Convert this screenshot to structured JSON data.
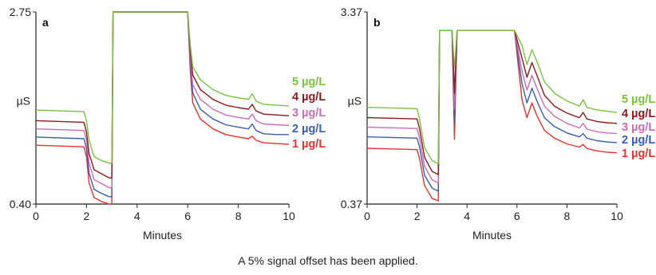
{
  "caption": "A 5% signal offset has been applied.",
  "chart_data": [
    {
      "type": "line",
      "panel_label": "a",
      "xlabel": "Minutes",
      "ylabel": "µS",
      "xlim": [
        0,
        10
      ],
      "x_ticks": [
        "0",
        "2",
        "4",
        "6",
        "8",
        "10"
      ],
      "ylim": [
        0.4,
        2.75
      ],
      "y_ticks": [
        "0.40",
        "2.75"
      ],
      "legend_placement": "right",
      "series": [
        {
          "name": "5 µg/L",
          "color": "#7ac143",
          "x": [
            0,
            1.9,
            2.0,
            2.1,
            2.3,
            2.6,
            2.9,
            3.0,
            3.05,
            6.0,
            6.1,
            6.2,
            6.5,
            7.0,
            7.5,
            8.0,
            8.4,
            8.55,
            8.7,
            9.0,
            9.5,
            10.0
          ],
          "y": [
            1.55,
            1.53,
            1.42,
            1.18,
            0.98,
            0.93,
            0.9,
            0.9,
            2.75,
            2.75,
            2.35,
            2.08,
            1.92,
            1.8,
            1.73,
            1.7,
            1.68,
            1.75,
            1.66,
            1.62,
            1.61,
            1.6
          ]
        },
        {
          "name": "4 µg/L",
          "color": "#8b1a1a",
          "x": [
            0,
            1.9,
            2.0,
            2.1,
            2.3,
            2.6,
            2.9,
            3.0,
            3.05,
            6.0,
            6.1,
            6.2,
            6.5,
            7.0,
            7.5,
            8.0,
            8.4,
            8.55,
            8.7,
            9.0,
            9.5,
            10.0
          ],
          "y": [
            1.42,
            1.4,
            1.28,
            1.02,
            0.82,
            0.77,
            0.72,
            0.72,
            2.75,
            2.75,
            2.28,
            1.98,
            1.8,
            1.68,
            1.61,
            1.58,
            1.56,
            1.62,
            1.54,
            1.5,
            1.49,
            1.48
          ]
        },
        {
          "name": "3 µg/L",
          "color": "#c86eb4",
          "x": [
            0,
            1.9,
            2.0,
            2.1,
            2.3,
            2.6,
            2.9,
            3.0,
            3.05,
            6.0,
            6.1,
            6.2,
            6.5,
            7.0,
            7.5,
            8.0,
            8.4,
            8.55,
            8.7,
            9.0,
            9.5,
            10.0
          ],
          "y": [
            1.32,
            1.3,
            1.18,
            0.9,
            0.7,
            0.65,
            0.6,
            0.6,
            2.75,
            2.75,
            2.2,
            1.86,
            1.68,
            1.56,
            1.49,
            1.46,
            1.44,
            1.5,
            1.42,
            1.38,
            1.37,
            1.36
          ]
        },
        {
          "name": "2 µg/L",
          "color": "#3a5da8",
          "x": [
            0,
            1.9,
            2.0,
            2.1,
            2.3,
            2.6,
            2.9,
            3.0,
            3.05,
            6.0,
            6.1,
            6.2,
            6.5,
            7.0,
            7.5,
            8.0,
            8.4,
            8.55,
            8.7,
            9.0,
            9.5,
            10.0
          ],
          "y": [
            1.22,
            1.2,
            1.08,
            0.78,
            0.58,
            0.53,
            0.49,
            0.49,
            2.75,
            2.75,
            2.12,
            1.76,
            1.56,
            1.44,
            1.37,
            1.34,
            1.32,
            1.38,
            1.3,
            1.26,
            1.25,
            1.25
          ]
        },
        {
          "name": "1 µg/L",
          "color": "#e0332e",
          "x": [
            0,
            1.9,
            2.0,
            2.1,
            2.3,
            2.6,
            2.9,
            3.0,
            3.05,
            6.0,
            6.1,
            6.2,
            6.5,
            7.0,
            7.5,
            8.0,
            8.4,
            8.55,
            8.7,
            9.0,
            9.5,
            10.0
          ],
          "y": [
            1.12,
            1.1,
            0.98,
            0.66,
            0.48,
            0.43,
            0.4,
            0.4,
            2.75,
            2.75,
            2.04,
            1.64,
            1.44,
            1.32,
            1.25,
            1.22,
            1.2,
            1.23,
            1.18,
            1.15,
            1.14,
            1.13
          ]
        }
      ]
    },
    {
      "type": "line",
      "panel_label": "b",
      "xlabel": "Minutes",
      "ylabel": "µS",
      "xlim": [
        0,
        10
      ],
      "x_ticks": [
        "0",
        "2",
        "4",
        "6",
        "8",
        "10"
      ],
      "ylim": [
        0.37,
        3.37
      ],
      "y_ticks": [
        "0.37",
        "3.37"
      ],
      "legend_placement": "right",
      "series": [
        {
          "name": "5 µg/L",
          "color": "#7ac143",
          "x": [
            0,
            2.0,
            2.1,
            2.3,
            2.6,
            2.85,
            2.9,
            3.4,
            3.5,
            3.6,
            3.7,
            5.9,
            6.2,
            6.4,
            6.6,
            6.8,
            7.1,
            7.5,
            8.0,
            8.5,
            8.65,
            8.8,
            9.2,
            9.6,
            10.0
          ],
          "y": [
            1.88,
            1.86,
            1.7,
            1.25,
            1.05,
            1.0,
            3.08,
            3.08,
            2.5,
            3.08,
            3.08,
            3.08,
            2.85,
            2.55,
            2.78,
            2.6,
            2.28,
            2.1,
            1.98,
            1.9,
            2.0,
            1.88,
            1.84,
            1.82,
            1.8
          ]
        },
        {
          "name": "4 µg/L",
          "color": "#8b1a1a",
          "x": [
            0,
            2.0,
            2.1,
            2.3,
            2.6,
            2.85,
            2.9,
            3.4,
            3.5,
            3.6,
            3.7,
            5.9,
            6.2,
            6.4,
            6.6,
            6.8,
            7.1,
            7.5,
            8.0,
            8.5,
            8.65,
            8.8,
            9.2,
            9.6,
            10.0
          ],
          "y": [
            1.72,
            1.7,
            1.55,
            1.1,
            0.88,
            0.83,
            3.08,
            3.08,
            2.1,
            3.08,
            3.08,
            3.08,
            2.65,
            2.35,
            2.58,
            2.38,
            2.07,
            1.9,
            1.79,
            1.72,
            1.8,
            1.7,
            1.66,
            1.64,
            1.63
          ]
        },
        {
          "name": "3 µg/L",
          "color": "#c86eb4",
          "x": [
            0,
            2.0,
            2.1,
            2.3,
            2.6,
            2.85,
            2.9,
            3.4,
            3.5,
            3.6,
            3.7,
            5.9,
            6.2,
            6.4,
            6.6,
            6.8,
            7.1,
            7.5,
            8.0,
            8.5,
            8.65,
            8.8,
            9.2,
            9.6,
            10.0
          ],
          "y": [
            1.57,
            1.55,
            1.4,
            0.96,
            0.75,
            0.7,
            3.08,
            3.08,
            1.85,
            3.08,
            3.08,
            3.08,
            2.45,
            2.15,
            2.38,
            2.18,
            1.9,
            1.74,
            1.63,
            1.56,
            1.63,
            1.54,
            1.5,
            1.48,
            1.47
          ]
        },
        {
          "name": "2 µg/L",
          "color": "#3a5da8",
          "x": [
            0,
            2.0,
            2.1,
            2.3,
            2.6,
            2.85,
            2.9,
            3.4,
            3.5,
            3.6,
            3.7,
            5.9,
            6.2,
            6.4,
            6.6,
            6.8,
            7.1,
            7.5,
            8.0,
            8.5,
            8.65,
            8.8,
            9.2,
            9.6,
            10.0
          ],
          "y": [
            1.42,
            1.4,
            1.26,
            0.82,
            0.62,
            0.57,
            3.08,
            3.08,
            1.62,
            3.08,
            3.08,
            3.08,
            2.25,
            1.95,
            2.18,
            1.98,
            1.72,
            1.58,
            1.48,
            1.42,
            1.47,
            1.4,
            1.36,
            1.34,
            1.33
          ]
        },
        {
          "name": "1 µg/L",
          "color": "#e0332e",
          "x": [
            0,
            2.0,
            2.1,
            2.3,
            2.6,
            2.85,
            2.9,
            3.4,
            3.5,
            3.6,
            3.7,
            5.9,
            6.2,
            6.4,
            6.6,
            6.8,
            7.1,
            7.5,
            8.0,
            8.5,
            8.65,
            8.8,
            9.2,
            9.6,
            10.0
          ],
          "y": [
            1.24,
            1.22,
            1.08,
            0.66,
            0.46,
            0.42,
            3.08,
            3.08,
            1.38,
            3.08,
            3.08,
            3.08,
            2.0,
            1.72,
            1.95,
            1.75,
            1.52,
            1.4,
            1.31,
            1.26,
            1.3,
            1.24,
            1.2,
            1.18,
            1.17
          ]
        }
      ]
    }
  ]
}
